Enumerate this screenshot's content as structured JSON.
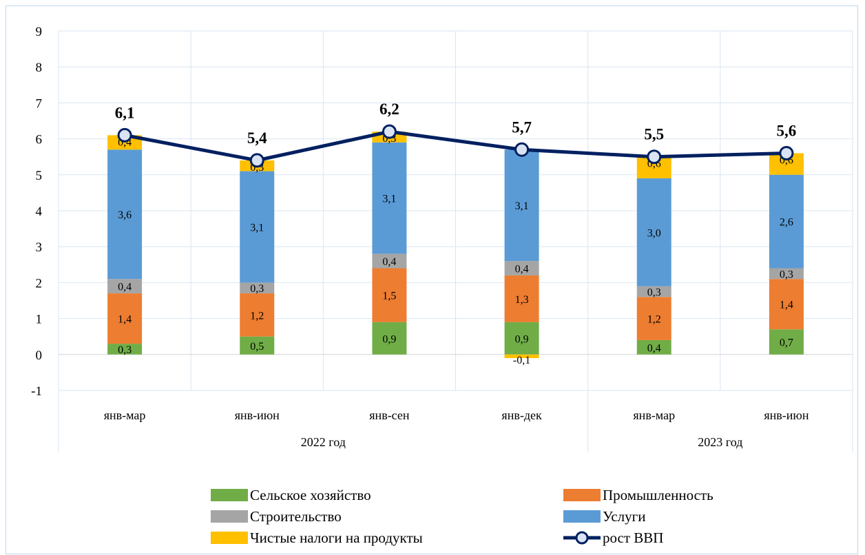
{
  "chart_data": {
    "type": "bar",
    "stacked": true,
    "categories": [
      "янв-мар",
      "янв-июн",
      "янв-сен",
      "янв-дек",
      "янв-мар",
      "янв-июн"
    ],
    "groups": [
      {
        "label": "2022 год",
        "categories": [
          0,
          1,
          2,
          3
        ]
      },
      {
        "label": "2023 год",
        "categories": [
          4,
          5
        ]
      }
    ],
    "series": [
      {
        "name": "Сельское хозяйство",
        "color": "#70ad47",
        "values": [
          0.3,
          0.5,
          0.9,
          0.9,
          0.4,
          0.7
        ],
        "labels": [
          "0,3",
          "0,5",
          "0,9",
          "0,9",
          "0,4",
          "0,7"
        ]
      },
      {
        "name": "Промышленность",
        "color": "#ed7d31",
        "values": [
          1.4,
          1.2,
          1.5,
          1.3,
          1.2,
          1.4
        ],
        "labels": [
          "1,4",
          "1,2",
          "1,5",
          "1,3",
          "1,2",
          "1,4"
        ]
      },
      {
        "name": "Строительство",
        "color": "#a5a5a5",
        "values": [
          0.4,
          0.3,
          0.4,
          0.4,
          0.3,
          0.3
        ],
        "labels": [
          "0,4",
          "0,3",
          "0,4",
          "0,4",
          "0,3",
          "0,3"
        ]
      },
      {
        "name": "Услуги",
        "color": "#5b9bd5",
        "values": [
          3.6,
          3.1,
          3.1,
          3.1,
          3.0,
          2.6
        ],
        "labels": [
          "3,6",
          "3,1",
          "3,1",
          "3,1",
          "3,0",
          "2,6"
        ]
      },
      {
        "name": "Чистые налоги на продукты",
        "color": "#ffc000",
        "values": [
          0.4,
          0.3,
          0.3,
          -0.1,
          0.6,
          0.6
        ],
        "labels": [
          "0,4",
          "0,3",
          "0,3",
          "-0,1",
          "0,6",
          "0,6"
        ]
      }
    ],
    "line": {
      "name": "рост ВВП",
      "color": "#002060",
      "values": [
        6.1,
        5.4,
        6.2,
        5.7,
        5.5,
        5.6
      ],
      "labels": [
        "6,1",
        "5,4",
        "6,2",
        "5,7",
        "5,5",
        "5,6"
      ]
    },
    "ylim": [
      -1,
      9
    ],
    "yticks": [
      -1,
      0,
      1,
      2,
      3,
      4,
      5,
      6,
      7,
      8,
      9
    ],
    "grid": true,
    "legend": "bottom"
  }
}
